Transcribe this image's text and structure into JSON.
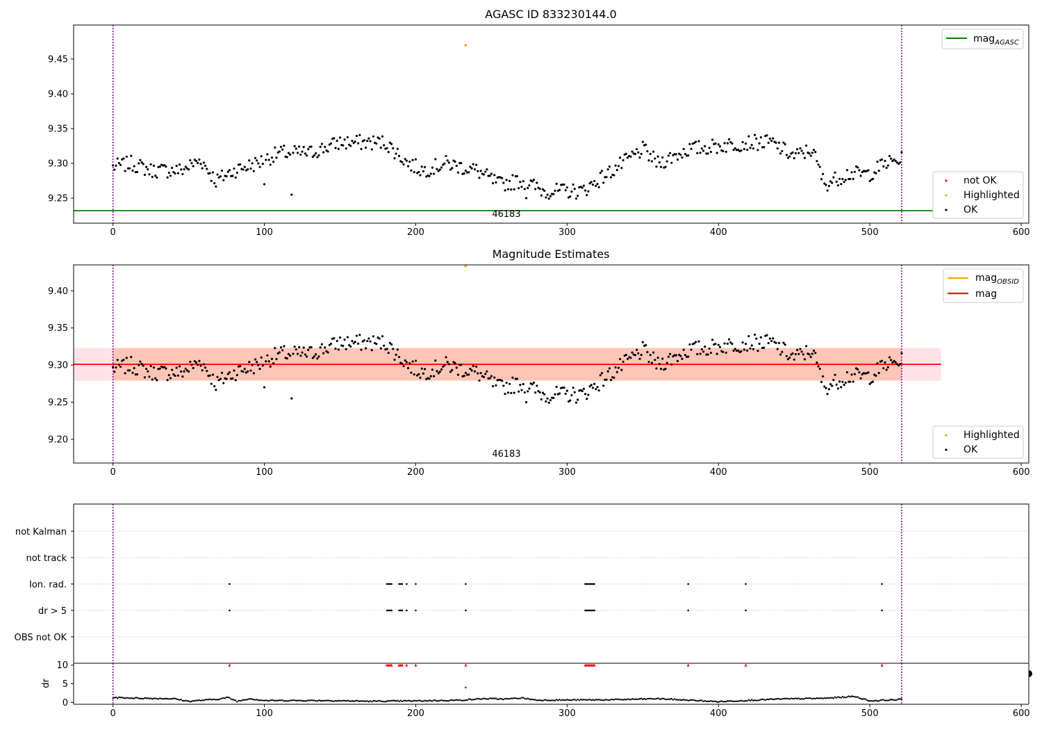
{
  "chart_data": [
    {
      "type": "scatter",
      "title": "AGASC ID 833230144.0",
      "xlim": [
        -26,
        605
      ],
      "ylim": [
        9.214,
        9.499
      ],
      "xticks": [
        "0",
        "100",
        "200",
        "300",
        "400",
        "500",
        "600"
      ],
      "yticks": [
        "9.25",
        "9.30",
        "9.35",
        "9.40",
        "9.45"
      ],
      "vlines": [
        0,
        521
      ],
      "hline": {
        "name": "mag_AGASC",
        "value": 9.232
      },
      "annotation": {
        "text": "46183",
        "x": 260
      },
      "legend_line": {
        "label": "mag",
        "sub": "AGASC"
      },
      "legend_markers": [
        "not OK",
        "Highlighted",
        "OK"
      ],
      "highlighted": [
        {
          "x": 233,
          "y": 9.47
        }
      ],
      "series_ok_profile": {
        "x": [
          0,
          12,
          25,
          45,
          58,
          68,
          80,
          95,
          110,
          130,
          150,
          165,
          180,
          195,
          205,
          220,
          240,
          255,
          270,
          285,
          300,
          310,
          330,
          350,
          360,
          380,
          400,
          420,
          435,
          450,
          462,
          470,
          485,
          500,
          510,
          521
        ],
        "y": [
          9.295,
          9.3,
          9.29,
          9.29,
          9.305,
          9.275,
          9.29,
          9.3,
          9.315,
          9.315,
          9.33,
          9.33,
          9.33,
          9.3,
          9.29,
          9.3,
          9.29,
          9.27,
          9.275,
          9.26,
          9.26,
          9.26,
          9.29,
          9.32,
          9.3,
          9.32,
          9.325,
          9.33,
          9.33,
          9.31,
          9.32,
          9.27,
          9.285,
          9.285,
          9.3,
          9.305
        ]
      }
    },
    {
      "type": "scatter",
      "title": "Magnitude Estimates",
      "xlim": [
        -26,
        605
      ],
      "ylim": [
        9.168,
        9.435
      ],
      "xticks": [
        "0",
        "100",
        "200",
        "300",
        "400",
        "500",
        "600"
      ],
      "yticks": [
        "9.20",
        "9.25",
        "9.30",
        "9.35",
        "9.40"
      ],
      "vlines": [
        0,
        521
      ],
      "mag": {
        "value": 9.301,
        "band": [
          9.279,
          9.323
        ],
        "x_end": 547
      },
      "mag_obsid": {
        "value": 9.301,
        "band": [
          9.279,
          9.323
        ],
        "x_start": 0,
        "x_end": 521
      },
      "annotation": {
        "text": "46183",
        "x": 260
      },
      "legend_lines": [
        {
          "label": "mag",
          "sub": "OBSID"
        },
        {
          "label": "mag",
          "sub": ""
        }
      ],
      "legend_markers": [
        "Highlighted",
        "OK"
      ],
      "highlighted": [
        {
          "x": 233,
          "y": 9.434
        }
      ]
    },
    {
      "type": "scatter",
      "title": "",
      "xlim": [
        -26,
        605
      ],
      "categories": [
        "not Kalman",
        "not track",
        "Ion. rad.",
        "dr > 5",
        "OBS not OK"
      ],
      "flag_x": [
        77,
        181,
        182,
        183,
        184,
        189,
        190,
        191,
        194,
        200,
        233,
        312,
        313,
        314,
        315,
        316,
        317,
        318,
        380,
        418,
        508
      ],
      "flag_rows": [
        "Ion. rad.",
        "dr > 5"
      ]
    },
    {
      "type": "scatter",
      "title": "",
      "ylabel": "dr",
      "xlim": [
        -26,
        605
      ],
      "ylim": [
        -0.5,
        10.5
      ],
      "xticks": [
        "0",
        "100",
        "200",
        "300",
        "400",
        "500",
        "600"
      ],
      "yticks": [
        "0",
        "5",
        "10"
      ],
      "clipped_value": 10,
      "clipped_x": [
        77,
        181,
        182,
        183,
        184,
        189,
        190,
        191,
        194,
        200,
        233,
        312,
        313,
        314,
        315,
        316,
        317,
        318,
        380,
        418,
        508
      ],
      "highlighted": [
        {
          "x": 233,
          "y": 4.0
        }
      ],
      "profile": {
        "x": [
          0,
          10,
          20,
          40,
          50,
          60,
          70,
          76,
          82,
          90,
          100,
          140,
          170,
          200,
          230,
          245,
          260,
          270,
          280,
          330,
          360,
          400,
          440,
          470,
          490,
          500,
          521
        ],
        "y": [
          1.3,
          1.2,
          1.1,
          1.0,
          0.3,
          0.6,
          0.9,
          1.3,
          0.3,
          1.0,
          0.5,
          0.5,
          0.3,
          0.4,
          0.6,
          1.0,
          0.9,
          1.2,
          0.6,
          0.7,
          1.0,
          0.2,
          0.9,
          1.1,
          1.6,
          0.4,
          0.8
        ]
      }
    }
  ],
  "colors": {
    "ok": "#000000",
    "not_ok": "#ff0000",
    "highlighted": "#ffa500",
    "mag_agasc": "#008000",
    "mag": "#ff0000",
    "mag_obsid": "#ffa500",
    "vline": "#800080",
    "mag_band": "#ffc0cb",
    "obsid_band": "#ffa07a"
  }
}
